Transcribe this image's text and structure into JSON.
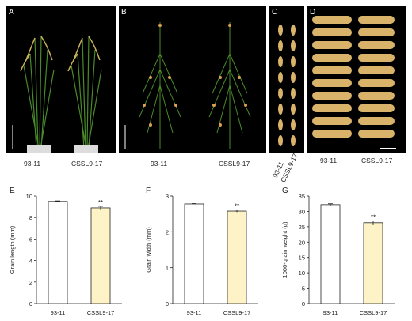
{
  "panels": {
    "A": {
      "label": "A",
      "captions": [
        "93-11",
        "CSSL9-17"
      ]
    },
    "B": {
      "label": "B",
      "captions": [
        "93-11",
        "CSSL9-17"
      ]
    },
    "C": {
      "label": "C",
      "captions": [
        "93-11",
        "CSSL9-17"
      ]
    },
    "D": {
      "label": "D",
      "captions": [
        "93-11",
        "CSSL9-17"
      ]
    }
  },
  "colors": {
    "bar_9311": "#ffffff",
    "bar_cssl": "#fdf3c6",
    "panel_bg": "#000000",
    "grain": "#d9b36a",
    "plant_green": "#4a8a2a"
  },
  "chart_data": [
    {
      "panel_label": "E",
      "type": "bar",
      "categories": [
        "93-11",
        "CSSL9-17"
      ],
      "values": [
        9.5,
        8.9
      ],
      "errors": [
        0.05,
        0.15
      ],
      "significance": [
        "",
        "**"
      ],
      "ylabel": "Grain length (mm)",
      "ylim": [
        0,
        10
      ],
      "yticks": [
        0,
        2,
        4,
        6,
        8,
        10
      ]
    },
    {
      "panel_label": "F",
      "type": "bar",
      "categories": [
        "93-11",
        "CSSL9-17"
      ],
      "values": [
        2.78,
        2.58
      ],
      "errors": [
        0.01,
        0.03
      ],
      "significance": [
        "",
        "**"
      ],
      "ylabel": "Grain width (mm)",
      "ylim": [
        0,
        3
      ],
      "yticks": [
        0,
        1,
        2,
        3
      ]
    },
    {
      "panel_label": "G",
      "type": "bar",
      "categories": [
        "93-11",
        "CSSL9-17"
      ],
      "values": [
        32.2,
        26.3
      ],
      "errors": [
        0.3,
        0.6
      ],
      "significance": [
        "",
        "**"
      ],
      "ylabel": "1000-grain weight (g)",
      "ylim": [
        0,
        35
      ],
      "yticks": [
        0,
        5,
        10,
        15,
        20,
        25,
        30,
        35
      ]
    }
  ]
}
